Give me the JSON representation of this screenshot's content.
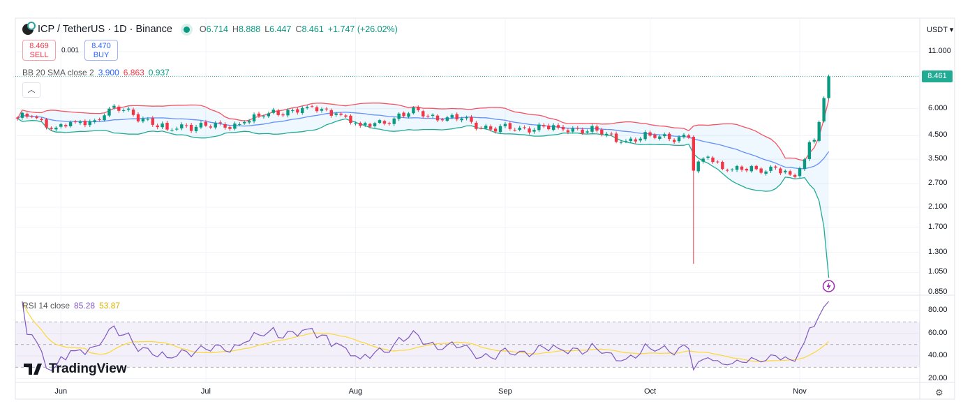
{
  "header": {
    "symbol_title": "ICP / TetherUS · 1D · Binance",
    "ohlc": {
      "open_label": "O",
      "open": "6.714",
      "high_label": "H",
      "high": "8.888",
      "low_label": "L",
      "low": "6.447",
      "close_label": "C",
      "close": "8.461",
      "change": "+1.747 (+26.02%)"
    }
  },
  "trade": {
    "sell_price": "8.469",
    "sell_label": "SELL",
    "spread": "0.001",
    "buy_price": "8.470",
    "buy_label": "BUY"
  },
  "indicators": {
    "bb": {
      "label": "BB 20 SMA close 2",
      "basis": "3.900",
      "upper": "6.863",
      "lower": "0.937"
    },
    "rsi": {
      "label": "RSI 14 close",
      "value": "85.28",
      "ma": "53.87"
    },
    "collapse_icon": "chevron-up-icon"
  },
  "currency_selector": "USDT ▾",
  "last_price_label": "8.461",
  "colors": {
    "up": "#089981",
    "down": "#f23645",
    "bb_upper": "#f7525f",
    "bb_lower": "#22ab94",
    "bb_basis": "#2962ff",
    "rsi": "#7e57c2",
    "rsi_ma": "#fdd835"
  },
  "branding": "TradingView",
  "chart_data": {
    "type": "candlestick",
    "interval": "1D",
    "price_scale": "log",
    "price_ticks": [
      "11.000",
      "6.000",
      "4.500",
      "3.500",
      "2.700",
      "2.100",
      "1.700",
      "1.300",
      "1.050",
      "0.850"
    ],
    "price_tick_values": [
      11,
      6,
      4.5,
      3.5,
      2.7,
      2.1,
      1.7,
      1.3,
      1.05,
      0.85
    ],
    "rsi_ticks": [
      "80.00",
      "60.00",
      "40.00",
      "20.00"
    ],
    "rsi_tick_values": [
      80,
      60,
      40,
      20
    ],
    "rsi_bands": [
      70,
      50,
      30
    ],
    "x_ticks": [
      {
        "label": "Jun",
        "day": 9
      },
      {
        "label": "Jul",
        "day": 39
      },
      {
        "label": "Aug",
        "day": 70
      },
      {
        "label": "Sep",
        "day": 101
      },
      {
        "label": "Oct",
        "day": 131
      },
      {
        "label": "Nov",
        "day": 162
      }
    ],
    "total_days": 169,
    "close_keypoints": [
      [
        0,
        5.4
      ],
      [
        3,
        5.5
      ],
      [
        8,
        4.9
      ],
      [
        12,
        5.2
      ],
      [
        16,
        5.3
      ],
      [
        19,
        6.0
      ],
      [
        22,
        5.9
      ],
      [
        26,
        5.4
      ],
      [
        31,
        4.8
      ],
      [
        35,
        5.0
      ],
      [
        39,
        5.0
      ],
      [
        43,
        4.9
      ],
      [
        47,
        5.2
      ],
      [
        52,
        5.7
      ],
      [
        57,
        5.9
      ],
      [
        60,
        6.1
      ],
      [
        66,
        5.7
      ],
      [
        71,
        5.0
      ],
      [
        78,
        5.4
      ],
      [
        83,
        5.9
      ],
      [
        88,
        5.3
      ],
      [
        92,
        5.4
      ],
      [
        98,
        4.8
      ],
      [
        104,
        4.9
      ],
      [
        112,
        4.9
      ],
      [
        120,
        4.75
      ],
      [
        125,
        4.2
      ],
      [
        131,
        4.5
      ],
      [
        139,
        4.4
      ],
      [
        140,
        3.1
      ],
      [
        143,
        3.6
      ],
      [
        147,
        3.1
      ],
      [
        153,
        3.15
      ],
      [
        157,
        3.2
      ],
      [
        161,
        2.9
      ],
      [
        163,
        3.5
      ],
      [
        164,
        4.2
      ],
      [
        165,
        4.3
      ],
      [
        166,
        5.2
      ],
      [
        167,
        6.71
      ],
      [
        168,
        8.461
      ]
    ],
    "wick_lows": [
      [
        140,
        1.15
      ]
    ]
  }
}
